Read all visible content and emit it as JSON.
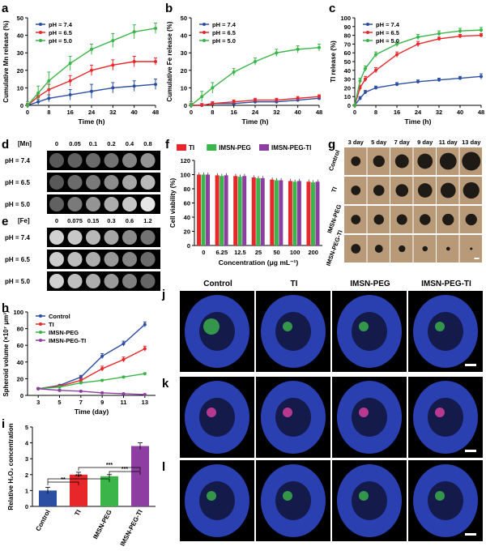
{
  "panels": {
    "a": "a",
    "b": "b",
    "c": "c",
    "d": "d",
    "e": "e",
    "f": "f",
    "g": "g",
    "h": "h",
    "i": "i",
    "j": "j",
    "k": "k",
    "l": "l"
  },
  "colors": {
    "blue": "#2d4fa3",
    "red": "#e8272a",
    "green": "#3bb54a",
    "purple": "#8c3fa0"
  },
  "chart_data": [
    {
      "id": "a",
      "type": "line",
      "xlabel": "Time (h)",
      "ylabel": "Cumulative Mn release (%)",
      "xlim": [
        0,
        48
      ],
      "ylim": [
        0,
        50
      ],
      "xticks": [
        0,
        8,
        16,
        24,
        32,
        40,
        48
      ],
      "yticks": [
        0,
        10,
        20,
        30,
        40,
        50
      ],
      "x": [
        0,
        4,
        8,
        16,
        24,
        32,
        40,
        48
      ],
      "series": [
        {
          "name": "pH = 7.4",
          "color": "#2d4fa3",
          "values": [
            0,
            2,
            4,
            6,
            8,
            10,
            11,
            12
          ],
          "err": [
            1,
            1.5,
            2,
            3,
            4,
            3,
            3,
            3
          ]
        },
        {
          "name": "pH = 6.5",
          "color": "#e8272a",
          "values": [
            0,
            5,
            9,
            14,
            20,
            23,
            25,
            25
          ],
          "err": [
            1,
            2,
            3,
            3,
            3,
            3,
            3,
            2
          ]
        },
        {
          "name": "pH = 5.0",
          "color": "#3bb54a",
          "values": [
            0,
            7,
            14,
            24,
            32,
            37,
            42,
            44
          ],
          "err": [
            2,
            4,
            5,
            4,
            3,
            4,
            4,
            3
          ]
        }
      ]
    },
    {
      "id": "b",
      "type": "line",
      "xlabel": "Time (h)",
      "ylabel": "Cumulative Fe release (%)",
      "xlim": [
        0,
        48
      ],
      "ylim": [
        0,
        50
      ],
      "xticks": [
        0,
        8,
        16,
        24,
        32,
        40,
        48
      ],
      "yticks": [
        0,
        10,
        20,
        30,
        40,
        50
      ],
      "x": [
        0,
        4,
        8,
        16,
        24,
        32,
        40,
        48
      ],
      "series": [
        {
          "name": "pH = 7.4",
          "color": "#2d4fa3",
          "values": [
            0,
            0,
            1,
            1,
            2,
            2,
            3,
            4
          ],
          "err": [
            1,
            1,
            1,
            1,
            1,
            1,
            1,
            1
          ]
        },
        {
          "name": "pH = 6.5",
          "color": "#e8272a",
          "values": [
            0,
            0,
            1,
            2,
            3,
            3,
            4,
            5
          ],
          "err": [
            1,
            1,
            1,
            1,
            1,
            1,
            1,
            1
          ]
        },
        {
          "name": "pH = 5.0",
          "color": "#3bb54a",
          "values": [
            0,
            5,
            10,
            19,
            25,
            30,
            32,
            33
          ],
          "err": [
            2,
            3,
            3,
            2,
            2,
            2,
            2,
            2
          ]
        }
      ]
    },
    {
      "id": "c",
      "type": "line",
      "xlabel": "Time (h)",
      "ylabel": "TI release (%)",
      "xlim": [
        0,
        48
      ],
      "ylim": [
        0,
        100
      ],
      "xticks": [
        0,
        8,
        16,
        24,
        32,
        40,
        48
      ],
      "yticks": [
        0,
        10,
        20,
        30,
        40,
        50,
        60,
        70,
        80,
        90,
        100
      ],
      "x": [
        0,
        2,
        4,
        8,
        16,
        24,
        32,
        40,
        48
      ],
      "series": [
        {
          "name": "pH = 7.4",
          "color": "#2d4fa3",
          "values": [
            0,
            8,
            15,
            20,
            24,
            27,
            29,
            31,
            33
          ],
          "err": [
            1,
            2,
            2,
            2,
            2,
            2,
            2,
            2,
            3
          ]
        },
        {
          "name": "pH = 6.5",
          "color": "#e8272a",
          "values": [
            0,
            20,
            30,
            40,
            58,
            70,
            76,
            79,
            80
          ],
          "err": [
            1,
            3,
            3,
            3,
            3,
            3,
            2,
            2,
            2
          ]
        },
        {
          "name": "pH = 5.0",
          "color": "#3bb54a",
          "values": [
            0,
            28,
            42,
            58,
            70,
            78,
            82,
            85,
            86
          ],
          "err": [
            1,
            3,
            3,
            3,
            3,
            3,
            3,
            3,
            3
          ]
        }
      ]
    },
    {
      "id": "f",
      "type": "bar",
      "xlabel": "Concentration (μg mL⁻¹)",
      "ylabel": "Cell viability (%)",
      "ylim": [
        0,
        120
      ],
      "yticks": [
        0,
        20,
        40,
        60,
        80,
        100,
        120
      ],
      "categories": [
        "0",
        "6.25",
        "12.5",
        "25",
        "50",
        "100",
        "200"
      ],
      "series": [
        {
          "name": "TI",
          "color": "#e8272a",
          "values": [
            100,
            99,
            98,
            96,
            93,
            91,
            90
          ]
        },
        {
          "name": "IMSN-PEG",
          "color": "#3bb54a",
          "values": [
            100,
            98,
            97,
            95,
            92,
            90,
            89
          ]
        },
        {
          "name": "IMSN-PEG-TI",
          "color": "#8c3fa0",
          "values": [
            100,
            99,
            98,
            95,
            92,
            91,
            90
          ]
        }
      ]
    },
    {
      "id": "h",
      "type": "line",
      "xlabel": "Time (day)",
      "ylabel": "Spheroid volume (×10⁷ μm³)",
      "xlim": [
        2,
        14
      ],
      "ylim": [
        0,
        100
      ],
      "xticks": [
        3,
        5,
        7,
        9,
        11,
        13
      ],
      "yticks": [
        0,
        20,
        40,
        60,
        80,
        100
      ],
      "x": [
        3,
        5,
        7,
        9,
        11,
        13
      ],
      "series": [
        {
          "name": "Control",
          "color": "#2d4fa3",
          "values": [
            8,
            12,
            22,
            47,
            62,
            85
          ],
          "err": [
            1,
            1,
            2,
            3,
            3,
            3
          ]
        },
        {
          "name": "TI",
          "color": "#e8272a",
          "values": [
            8,
            11,
            18,
            32,
            43,
            56
          ],
          "err": [
            1,
            1,
            2,
            3,
            3,
            3
          ]
        },
        {
          "name": "IMSN-PEG",
          "color": "#3bb54a",
          "values": [
            8,
            10,
            15,
            18,
            22,
            26
          ],
          "err": [
            1,
            1,
            1,
            1,
            1,
            1
          ]
        },
        {
          "name": "IMSN-PEG-TI",
          "color": "#8c3fa0",
          "values": [
            8,
            6,
            5,
            3,
            2,
            1
          ],
          "err": [
            1,
            1,
            0.5,
            0.5,
            0.5,
            0.5
          ]
        }
      ]
    },
    {
      "id": "i",
      "type": "bar",
      "xlabel": "",
      "ylabel": "Relative H₂O₂ concentration",
      "ylim": [
        0,
        5
      ],
      "yticks": [
        0,
        1,
        2,
        3,
        4,
        5
      ],
      "categories": [
        "Control",
        "TI",
        "IMSN-PEG",
        "IMSN-PEG-TI"
      ],
      "series": [
        {
          "name": "",
          "colors": [
            "#2d4fa3",
            "#e8272a",
            "#3bb54a",
            "#8c3fa0"
          ],
          "values": [
            1.0,
            2.0,
            1.9,
            3.8
          ],
          "err": [
            0.2,
            0.15,
            0.1,
            0.2
          ]
        }
      ],
      "annotations": [
        "**",
        "***",
        "***",
        "***"
      ]
    }
  ],
  "legends": {
    "release": [
      "pH = 7.4",
      "pH = 6.5",
      "pH = 5.0"
    ]
  },
  "phantom_d": {
    "header_label": "[Mn]",
    "concentrations": [
      "0",
      "0.05",
      "0.1",
      "0.2",
      "0.4",
      "0.8"
    ],
    "rows": [
      "pH = 7.4",
      "pH = 6.5",
      "pH = 5.0"
    ],
    "brightness": [
      [
        0.35,
        0.38,
        0.42,
        0.45,
        0.52,
        0.58
      ],
      [
        0.35,
        0.42,
        0.48,
        0.55,
        0.65,
        0.72
      ],
      [
        0.38,
        0.48,
        0.58,
        0.68,
        0.78,
        0.9
      ]
    ]
  },
  "phantom_e": {
    "header_label": "[Fe]",
    "concentrations": [
      "0",
      "0.075",
      "0.15",
      "0.3",
      "0.6",
      "1.2"
    ],
    "rows": [
      "pH = 7.4",
      "pH = 6.5",
      "pH = 5.0"
    ],
    "brightness": [
      [
        0.82,
        0.78,
        0.72,
        0.65,
        0.55,
        0.45
      ],
      [
        0.8,
        0.74,
        0.68,
        0.6,
        0.52,
        0.42
      ],
      [
        0.82,
        0.75,
        0.68,
        0.6,
        0.5,
        0.4
      ]
    ]
  },
  "spheroid_g": {
    "days": [
      "3 day",
      "5 day",
      "7 day",
      "9 day",
      "11 day",
      "13 day"
    ],
    "rows": [
      "Control",
      "TI",
      "IMSN-PEG",
      "IMSN-PEG-TI"
    ],
    "sizes": [
      [
        0.45,
        0.55,
        0.65,
        0.72,
        0.8,
        0.88
      ],
      [
        0.45,
        0.52,
        0.6,
        0.68,
        0.72,
        0.78
      ],
      [
        0.45,
        0.48,
        0.5,
        0.52,
        0.55,
        0.55
      ],
      [
        0.45,
        0.38,
        0.32,
        0.25,
        0.18,
        0.12
      ]
    ]
  },
  "fluorescence": {
    "columns": [
      "Control",
      "TI",
      "IMSN-PEG",
      "IMSN-PEG-TI"
    ]
  }
}
